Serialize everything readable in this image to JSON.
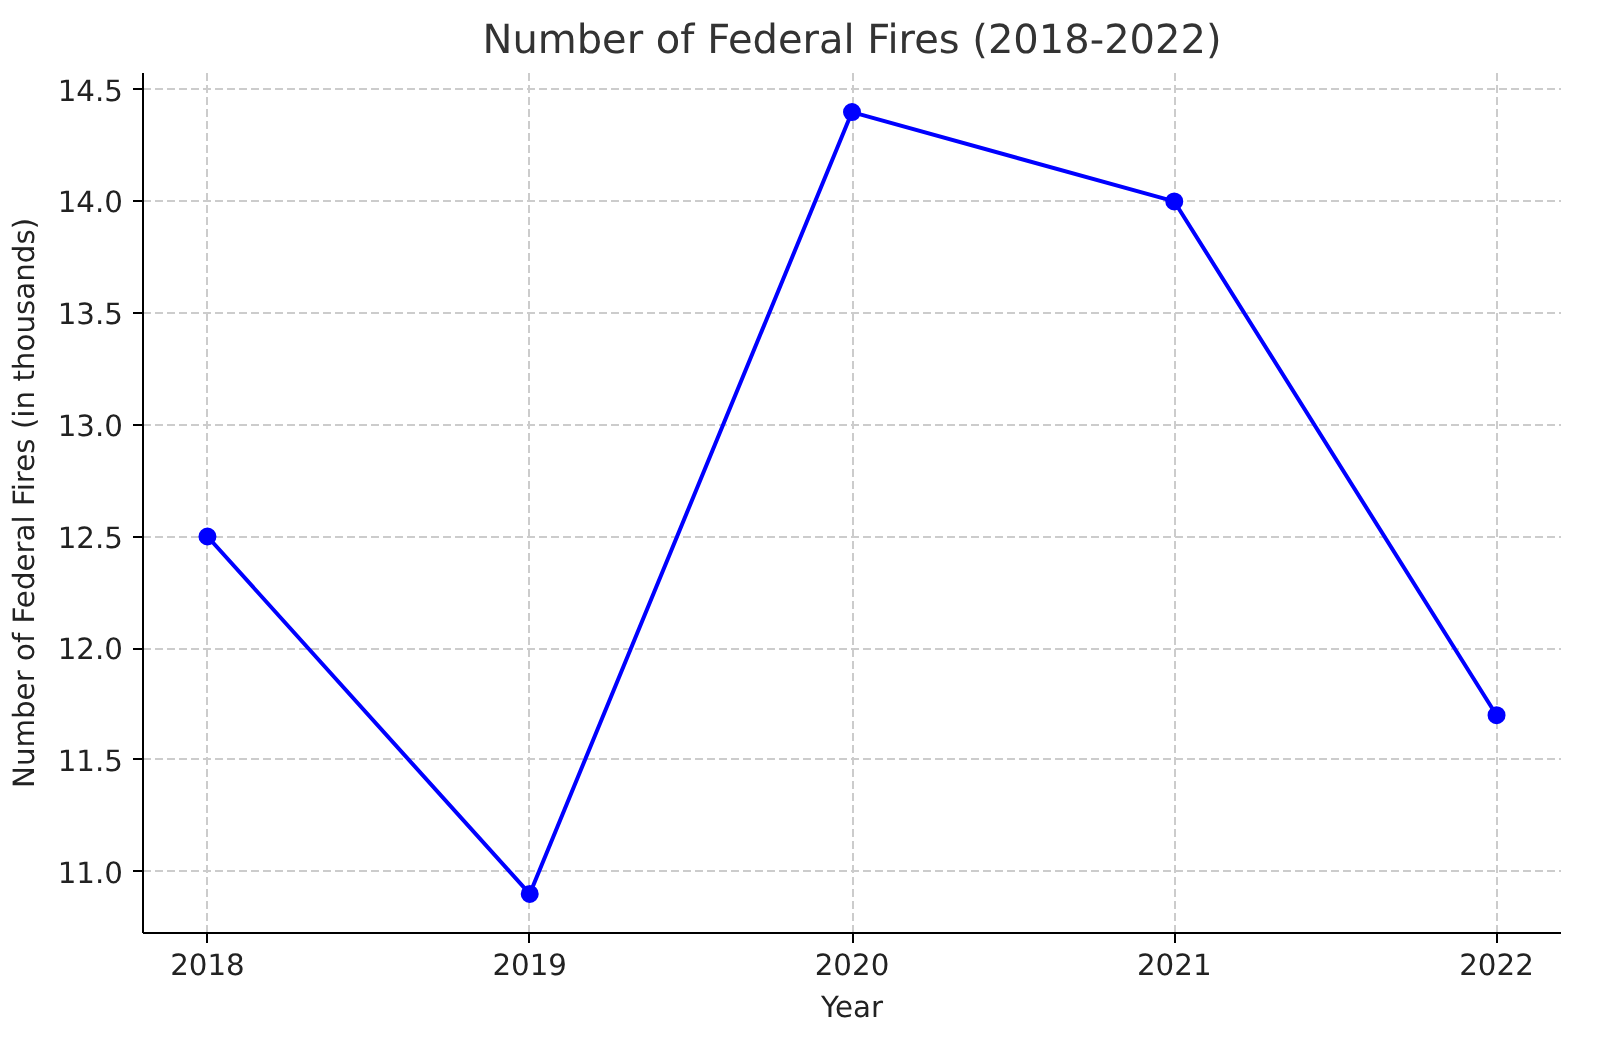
{
  "chart_data": {
    "type": "line",
    "title": "Number of Federal Fires (2018-2022)",
    "xlabel": "Year",
    "ylabel": "Number of Federal Fires (in thousands)",
    "x": [
      2018,
      2019,
      2020,
      2021,
      2022
    ],
    "series": [
      {
        "color": "#0000ff",
        "values": [
          12.5,
          10.9,
          14.4,
          14.0,
          11.7
        ]
      }
    ],
    "xlim": [
      2017.8,
      2022.2
    ],
    "xticks": [
      2018,
      2019,
      2020,
      2021,
      2022
    ],
    "ylim": [
      10.725,
      14.575
    ],
    "yticks": [
      {
        "value": 11.0,
        "label": "11.0"
      },
      {
        "value": 11.5,
        "label": "11.5"
      },
      {
        "value": 12.0,
        "label": "12.0"
      },
      {
        "value": 12.5,
        "label": "12.5"
      },
      {
        "value": 13.0,
        "label": "13.0"
      },
      {
        "value": 13.5,
        "label": "13.5"
      },
      {
        "value": 14.0,
        "label": "14.0"
      },
      {
        "value": 14.5,
        "label": "14.5"
      }
    ],
    "grid": true,
    "marker": "circle",
    "line_style": "solid"
  }
}
